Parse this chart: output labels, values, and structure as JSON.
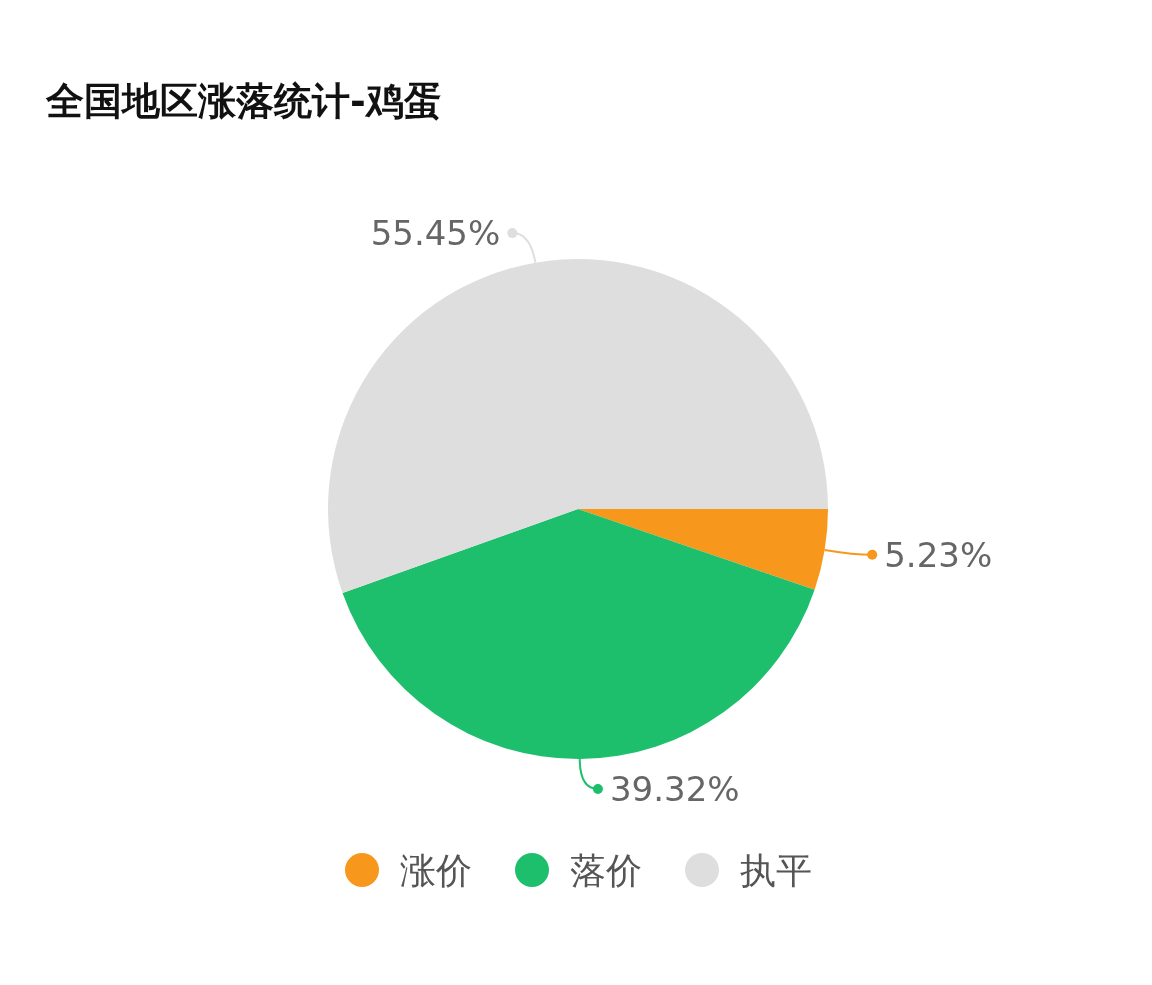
{
  "chart_data": {
    "type": "pie",
    "title": "全国地区涨落统计-鸡蛋",
    "categories": [
      "涨价",
      "落价",
      "执平"
    ],
    "values": [
      5.23,
      39.32,
      55.45
    ],
    "value_labels": [
      "5.23%",
      "39.32%",
      "55.45%"
    ],
    "colors": [
      "#f7981d",
      "#1dbf6d",
      "#dedede"
    ],
    "legend": "bottom"
  }
}
